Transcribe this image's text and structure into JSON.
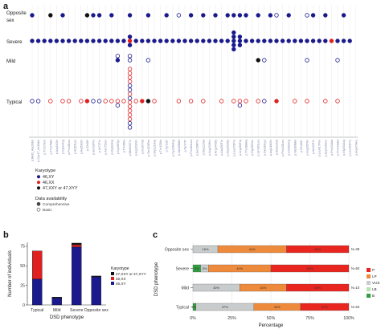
{
  "panel_a": {
    "panel_letter": "a",
    "row_labels": [
      "Opposite\nsex",
      "Severe",
      "Mild",
      "Typical"
    ],
    "variant_labels": [
      "p.Met1_Ala20del",
      "p.Cys17_Ile39del",
      "p.Thr27Asn",
      "p.Thr27Met",
      "p.Arg33Gln",
      "p.Gly44Arg",
      "p.Pro48Leu",
      "p.Arg51Lys",
      "p.Arg53Gln",
      "p.Gln58*",
      "p.Ser62Phe",
      "p.Ile71Thr",
      "p.Asn75Ser",
      "p.Gly82Asp",
      "p.Cys90Tyr",
      "p.Thr95Ile",
      "p.Met101Thr",
      "p.Arg103Gln",
      "p.Ile107Val",
      "p.Ser110Phe",
      "p.Gly121Asp",
      "p.Thr125Ile",
      "p.Tyr138*",
      "p.Cys150Arg",
      "p.Val165Met",
      "p.Tyr176*",
      "p.Pro184Leu",
      "p.Ser199Pro",
      "p.Gly221Val",
      "p.Arg233His",
      "p.Arg244Gly",
      "p.Ala250Thr",
      "p.Asp262Gly",
      "p.Leu273Pro",
      "p.Arg280Trp",
      "p.Thr288Ala",
      "p.Gly295Ser",
      "p.Ser301Leu",
      "p.Glu310Lys",
      "p.Arg318Gln",
      "p.Ala331Val",
      "p.Pro345Leu",
      "p.His360Arg",
      "p.Val369Met",
      "p.Gln381*",
      "p.Arg395Ter",
      "p.Ile403Thr",
      "p.Leu417Phe",
      "p.Asp425Asn",
      "p.Pro433Ala",
      "p.Thr441Met",
      "p.Gly453Arg",
      "p.Leu462Pro",
      "p.Arg470His"
    ],
    "groups": {
      "Opposite sex": [
        {
          "x": 1,
          "c": "46,XY",
          "b": false
        },
        {
          "x": 4,
          "c": "47,XXY or 47,XYY",
          "b": false
        },
        {
          "x": 6,
          "c": "46,XY",
          "b": false
        },
        {
          "x": 10,
          "c": "47,XXY or 47,XYY",
          "b": false
        },
        {
          "x": 11,
          "c": "46,XY",
          "b": false
        },
        {
          "x": 12,
          "c": "46,XY",
          "b": false
        },
        {
          "x": 14,
          "c": "46,XY",
          "b": false
        },
        {
          "x": 17,
          "c": "46,XY",
          "b": false
        },
        {
          "x": 20,
          "c": "46,XY",
          "b": false
        },
        {
          "x": 23,
          "c": "46,XY",
          "b": false
        },
        {
          "x": 25,
          "c": "46,XY",
          "b": true
        },
        {
          "x": 27,
          "c": "46,XY",
          "b": false
        },
        {
          "x": 29,
          "c": "46,XY",
          "b": false
        },
        {
          "x": 31,
          "c": "46,XY",
          "b": false
        },
        {
          "x": 33,
          "c": "46,XY",
          "b": false
        },
        {
          "x": 34,
          "c": "46,XY",
          "b": false
        },
        {
          "x": 35,
          "c": "46,XY",
          "b": false
        },
        {
          "x": 36,
          "c": "46,XY",
          "b": false
        },
        {
          "x": 38,
          "c": "46,XY",
          "b": false
        },
        {
          "x": 40,
          "c": "46,XY",
          "b": false
        },
        {
          "x": 41,
          "c": "46,XY",
          "b": true
        },
        {
          "x": 43,
          "c": "46,XY",
          "b": false
        },
        {
          "x": 46,
          "c": "46,XY",
          "b": true
        },
        {
          "x": 47,
          "c": "46,XY",
          "b": false
        },
        {
          "x": 49,
          "c": "46,XY",
          "b": false
        },
        {
          "x": 52,
          "c": "46,XY",
          "b": false
        }
      ],
      "Severe": [
        {
          "x": 1,
          "c": "46,XY",
          "b": false
        },
        {
          "x": 2,
          "c": "46,XY",
          "b": false
        },
        {
          "x": 3,
          "c": "46,XY",
          "b": false
        },
        {
          "x": 4,
          "c": "46,XY",
          "b": false
        },
        {
          "x": 5,
          "c": "46,XY",
          "b": false
        },
        {
          "x": 6,
          "c": "46,XY",
          "b": false
        },
        {
          "x": 7,
          "c": "46,XY",
          "b": false
        },
        {
          "x": 8,
          "c": "46,XY",
          "b": false
        },
        {
          "x": 9,
          "c": "46,XY",
          "b": false
        },
        {
          "x": 10,
          "c": "46,XY",
          "b": false
        },
        {
          "x": 11,
          "c": "46,XY",
          "b": false
        },
        {
          "x": 12,
          "c": "46,XY",
          "b": false
        },
        {
          "x": 13,
          "c": "46,XY",
          "b": false
        },
        {
          "x": 14,
          "c": "46,XY",
          "b": false
        },
        {
          "x": 15,
          "c": "46,XY",
          "b": false
        },
        {
          "x": 16,
          "c": "46,XY",
          "b": false
        },
        {
          "x": 17,
          "c": "46,XX",
          "b": false
        },
        {
          "x": 17,
          "c": "46,XY",
          "b": false
        },
        {
          "x": 17,
          "c": "46,XY",
          "b": false
        },
        {
          "x": 18,
          "c": "46,XY",
          "b": false
        },
        {
          "x": 19,
          "c": "46,XY",
          "b": false
        },
        {
          "x": 20,
          "c": "46,XY",
          "b": false
        },
        {
          "x": 21,
          "c": "46,XY",
          "b": false
        },
        {
          "x": 22,
          "c": "46,XY",
          "b": false
        },
        {
          "x": 23,
          "c": "46,XY",
          "b": false
        },
        {
          "x": 24,
          "c": "46,XY",
          "b": false
        },
        {
          "x": 25,
          "c": "46,XY",
          "b": false
        },
        {
          "x": 26,
          "c": "46,XY",
          "b": false
        },
        {
          "x": 27,
          "c": "46,XY",
          "b": false
        },
        {
          "x": 28,
          "c": "46,XY",
          "b": false
        },
        {
          "x": 29,
          "c": "46,XY",
          "b": false
        },
        {
          "x": 30,
          "c": "46,XY",
          "b": false
        },
        {
          "x": 31,
          "c": "46,XY",
          "b": false
        },
        {
          "x": 32,
          "c": "46,XY",
          "b": false
        },
        {
          "x": 33,
          "c": "46,XY",
          "b": false
        },
        {
          "x": 34,
          "c": "46,XY",
          "b": false
        },
        {
          "x": 34,
          "c": "46,XY",
          "b": false
        },
        {
          "x": 34,
          "c": "46,XY",
          "b": false
        },
        {
          "x": 34,
          "c": "46,XY",
          "b": false
        },
        {
          "x": 34,
          "c": "46,XY",
          "b": false
        },
        {
          "x": 35,
          "c": "46,XY",
          "b": false
        },
        {
          "x": 35,
          "c": "46,XY",
          "b": false
        },
        {
          "x": 35,
          "c": "46,XY",
          "b": false
        },
        {
          "x": 36,
          "c": "46,XY",
          "b": false
        },
        {
          "x": 37,
          "c": "46,XY",
          "b": false
        },
        {
          "x": 38,
          "c": "46,XY",
          "b": false
        },
        {
          "x": 39,
          "c": "46,XY",
          "b": false
        },
        {
          "x": 40,
          "c": "46,XY",
          "b": false
        },
        {
          "x": 41,
          "c": "46,XY",
          "b": false
        },
        {
          "x": 42,
          "c": "46,XY",
          "b": false
        },
        {
          "x": 43,
          "c": "46,XY",
          "b": false
        },
        {
          "x": 44,
          "c": "46,XY",
          "b": false
        },
        {
          "x": 45,
          "c": "46,XY",
          "b": false
        },
        {
          "x": 46,
          "c": "46,XY",
          "b": false
        },
        {
          "x": 47,
          "c": "46,XY",
          "b": false
        },
        {
          "x": 48,
          "c": "46,XY",
          "b": false
        },
        {
          "x": 49,
          "c": "46,XY",
          "b": false
        },
        {
          "x": 50,
          "c": "46,XX",
          "b": false
        },
        {
          "x": 51,
          "c": "46,XY",
          "b": false
        },
        {
          "x": 52,
          "c": "46,XY",
          "b": false
        },
        {
          "x": 53,
          "c": "46,XY",
          "b": false
        }
      ],
      "Mild": [
        {
          "x": 15,
          "c": "46,XY",
          "b": false
        },
        {
          "x": 15,
          "c": "46,XY",
          "b": true
        },
        {
          "x": 17,
          "c": "46,XY",
          "b": true
        },
        {
          "x": 17,
          "c": "46,XY",
          "b": true
        },
        {
          "x": 20,
          "c": "46,XY",
          "b": true
        },
        {
          "x": 38,
          "c": "47,XXY or 47,XYY",
          "b": false
        },
        {
          "x": 39,
          "c": "46,XY",
          "b": true
        },
        {
          "x": 46,
          "c": "46,XY",
          "b": true
        },
        {
          "x": 51,
          "c": "46,XY",
          "b": true
        }
      ],
      "Typical": [
        {
          "x": 1,
          "c": "46,XY",
          "b": true
        },
        {
          "x": 2,
          "c": "46,XY",
          "b": true
        },
        {
          "x": 4,
          "c": "46,XX",
          "b": true
        },
        {
          "x": 6,
          "c": "46,XX",
          "b": true
        },
        {
          "x": 7,
          "c": "46,XX",
          "b": true
        },
        {
          "x": 9,
          "c": "46,XX",
          "b": true
        },
        {
          "x": 10,
          "c": "46,XX",
          "b": false
        },
        {
          "x": 11,
          "c": "46,XY",
          "b": true
        },
        {
          "x": 12,
          "c": "46,XY",
          "b": true
        },
        {
          "x": 13,
          "c": "46,XX",
          "b": true
        },
        {
          "x": 14,
          "c": "46,XX",
          "b": true
        },
        {
          "x": 15,
          "c": "46,XX",
          "b": true
        },
        {
          "x": 15,
          "c": "46,XY",
          "b": true
        },
        {
          "x": 16,
          "c": "46,XX",
          "b": true
        },
        {
          "x": 17,
          "c": "46,XX",
          "b": true
        },
        {
          "x": 17,
          "c": "46,XX",
          "b": true
        },
        {
          "x": 17,
          "c": "46,XX",
          "b": true
        },
        {
          "x": 17,
          "c": "46,XX",
          "b": true
        },
        {
          "x": 17,
          "c": "46,XY",
          "b": true
        },
        {
          "x": 17,
          "c": "46,XY",
          "b": true
        },
        {
          "x": 17,
          "c": "46,XX",
          "b": true
        },
        {
          "x": 17,
          "c": "46,XY",
          "b": true
        },
        {
          "x": 17,
          "c": "46,XX",
          "b": true
        },
        {
          "x": 17,
          "c": "46,XX",
          "b": true
        },
        {
          "x": 17,
          "c": "46,XX",
          "b": true
        },
        {
          "x": 17,
          "c": "46,XX",
          "b": true
        },
        {
          "x": 17,
          "c": "46,XX",
          "b": true
        },
        {
          "x": 17,
          "c": "46,XY",
          "b": true
        },
        {
          "x": 17,
          "c": "46,XY",
          "b": true
        },
        {
          "x": 18,
          "c": "46,XX",
          "b": true
        },
        {
          "x": 19,
          "c": "46,XX",
          "b": false
        },
        {
          "x": 20,
          "c": "47,XXY or 47,XYY",
          "b": false
        },
        {
          "x": 21,
          "c": "46,XX",
          "b": true
        },
        {
          "x": 25,
          "c": "46,XX",
          "b": true
        },
        {
          "x": 27,
          "c": "46,XX",
          "b": true
        },
        {
          "x": 29,
          "c": "46,XX",
          "b": true
        },
        {
          "x": 32,
          "c": "46,XX",
          "b": true
        },
        {
          "x": 34,
          "c": "46,XX",
          "b": true
        },
        {
          "x": 35,
          "c": "46,XX",
          "b": true
        },
        {
          "x": 35,
          "c": "46,XY",
          "b": true
        },
        {
          "x": 36,
          "c": "46,XX",
          "b": true
        },
        {
          "x": 38,
          "c": "46,XX",
          "b": true
        },
        {
          "x": 39,
          "c": "46,XY",
          "b": true
        },
        {
          "x": 41,
          "c": "46,XX",
          "b": false
        },
        {
          "x": 44,
          "c": "46,XX",
          "b": true
        },
        {
          "x": 46,
          "c": "46,XX",
          "b": true
        },
        {
          "x": 49,
          "c": "46,XX",
          "b": true
        },
        {
          "x": 51,
          "c": "46,XX",
          "b": true
        }
      ]
    },
    "legend": {
      "karyotype_title": "Karyotype",
      "karyotype_items": [
        {
          "label": "46,XY",
          "color": "#1a1a8c"
        },
        {
          "label": "46,XX",
          "color": "#e02020"
        },
        {
          "label": "47,XXY or 47,XYY",
          "color": "#111111"
        }
      ],
      "availability_title": "Data availability",
      "availability_items": [
        {
          "label": "Comprehensive",
          "filled": true
        },
        {
          "label": "Basic",
          "filled": false
        }
      ]
    }
  },
  "chart_data": [
    {
      "type": "bar",
      "panel_letter": "b",
      "categories": [
        "Typical",
        "Mild",
        "Severe",
        "Opposite sex"
      ],
      "series": [
        {
          "name": "46,XY",
          "color": "#1a1a8c",
          "values": [
            33,
            9,
            74,
            36
          ]
        },
        {
          "name": "46,XX",
          "color": "#e02020",
          "values": [
            36,
            0,
            3,
            0
          ]
        },
        {
          "name": "47,XXY or 47,XYY",
          "color": "#111111",
          "values": [
            0,
            1,
            2,
            1
          ]
        }
      ],
      "xlabel": "DSD phenotype",
      "ylabel": "Number of individuals",
      "ylim": [
        0,
        80
      ],
      "yticks": [
        0,
        25,
        50,
        75
      ],
      "legend_title": "Karyotype",
      "legend_position": "right"
    },
    {
      "type": "bar",
      "orientation": "horizontal-stacked-percent",
      "panel_letter": "c",
      "categories": [
        "Opposite sex",
        "Severe",
        "Mild",
        "Typical"
      ],
      "series": [
        {
          "name": "B",
          "color": "#2e9e3e",
          "values": [
            0,
            5,
            0,
            2
          ]
        },
        {
          "name": "LB",
          "color": "#b6e3b0",
          "values": [
            0,
            0,
            0,
            0
          ]
        },
        {
          "name": "VUS",
          "color": "#c9cccc",
          "values": [
            16,
            5,
            30,
            37
          ]
        },
        {
          "name": "LP",
          "color": "#ee8a3c",
          "values": [
            44,
            40,
            30,
            30
          ]
        },
        {
          "name": "P",
          "color": "#e8251f",
          "values": [
            40,
            50,
            40,
            31
          ]
        }
      ],
      "segment_labels": [
        [
          "",
          "",
          "16%",
          "44%",
          "40%"
        ],
        [
          "5%",
          "",
          "5%",
          "40%",
          "50%"
        ],
        [
          "",
          "",
          "30%",
          "30%",
          "40%"
        ],
        [
          "2%",
          "",
          "37%",
          "30%",
          "31%"
        ]
      ],
      "n_labels": [
        "N=38",
        "N=60",
        "N=10",
        "N=63"
      ],
      "xlabel": "Percentage",
      "ylabel": "DSD phenotype",
      "xticks": [
        "0%",
        "25%",
        "50%",
        "75%",
        "100%"
      ],
      "xlim": [
        0,
        100
      ],
      "legend_order": [
        "P",
        "LP",
        "VUS",
        "LB",
        "B"
      ],
      "legend_position": "right"
    }
  ]
}
